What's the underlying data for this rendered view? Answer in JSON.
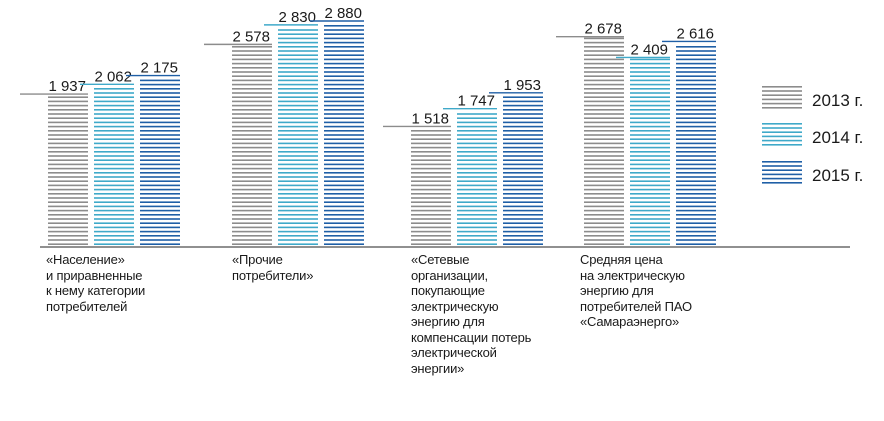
{
  "chart_data": {
    "type": "bar",
    "categories": [
      "«Население»\nи приравненные\nк нему категории\nпотребителей",
      "«Прочие\nпотребители»",
      "«Сетевые\nорганизации,\nпокупающие\nэлектрическую\nэнергию для\nкомпенсации потерь\nэлектрической\nэнергии»",
      "Средняя цена\nна электрическую\nэнергию для\nпотребителей ПАО\n«Самараэнерго»"
    ],
    "series": [
      {
        "name": "2013 г.",
        "values": [
          1937,
          2578,
          1518,
          2678
        ],
        "labels": [
          "1 937",
          "2 578",
          "1 518",
          "2 678"
        ],
        "color": "#8c8c8c"
      },
      {
        "name": "2014 г.",
        "values": [
          2062,
          2830,
          1747,
          2409
        ],
        "labels": [
          "2 062",
          "2 830",
          "1 747",
          "2 409"
        ],
        "color": "#3fa9c9"
      },
      {
        "name": "2015 г.",
        "values": [
          2175,
          2880,
          1953,
          2616
        ],
        "labels": [
          "2 175",
          "2 880",
          "1 953",
          "2 616"
        ],
        "color": "#1f5fa6"
      }
    ],
    "legend_position": "right",
    "grid": false
  }
}
